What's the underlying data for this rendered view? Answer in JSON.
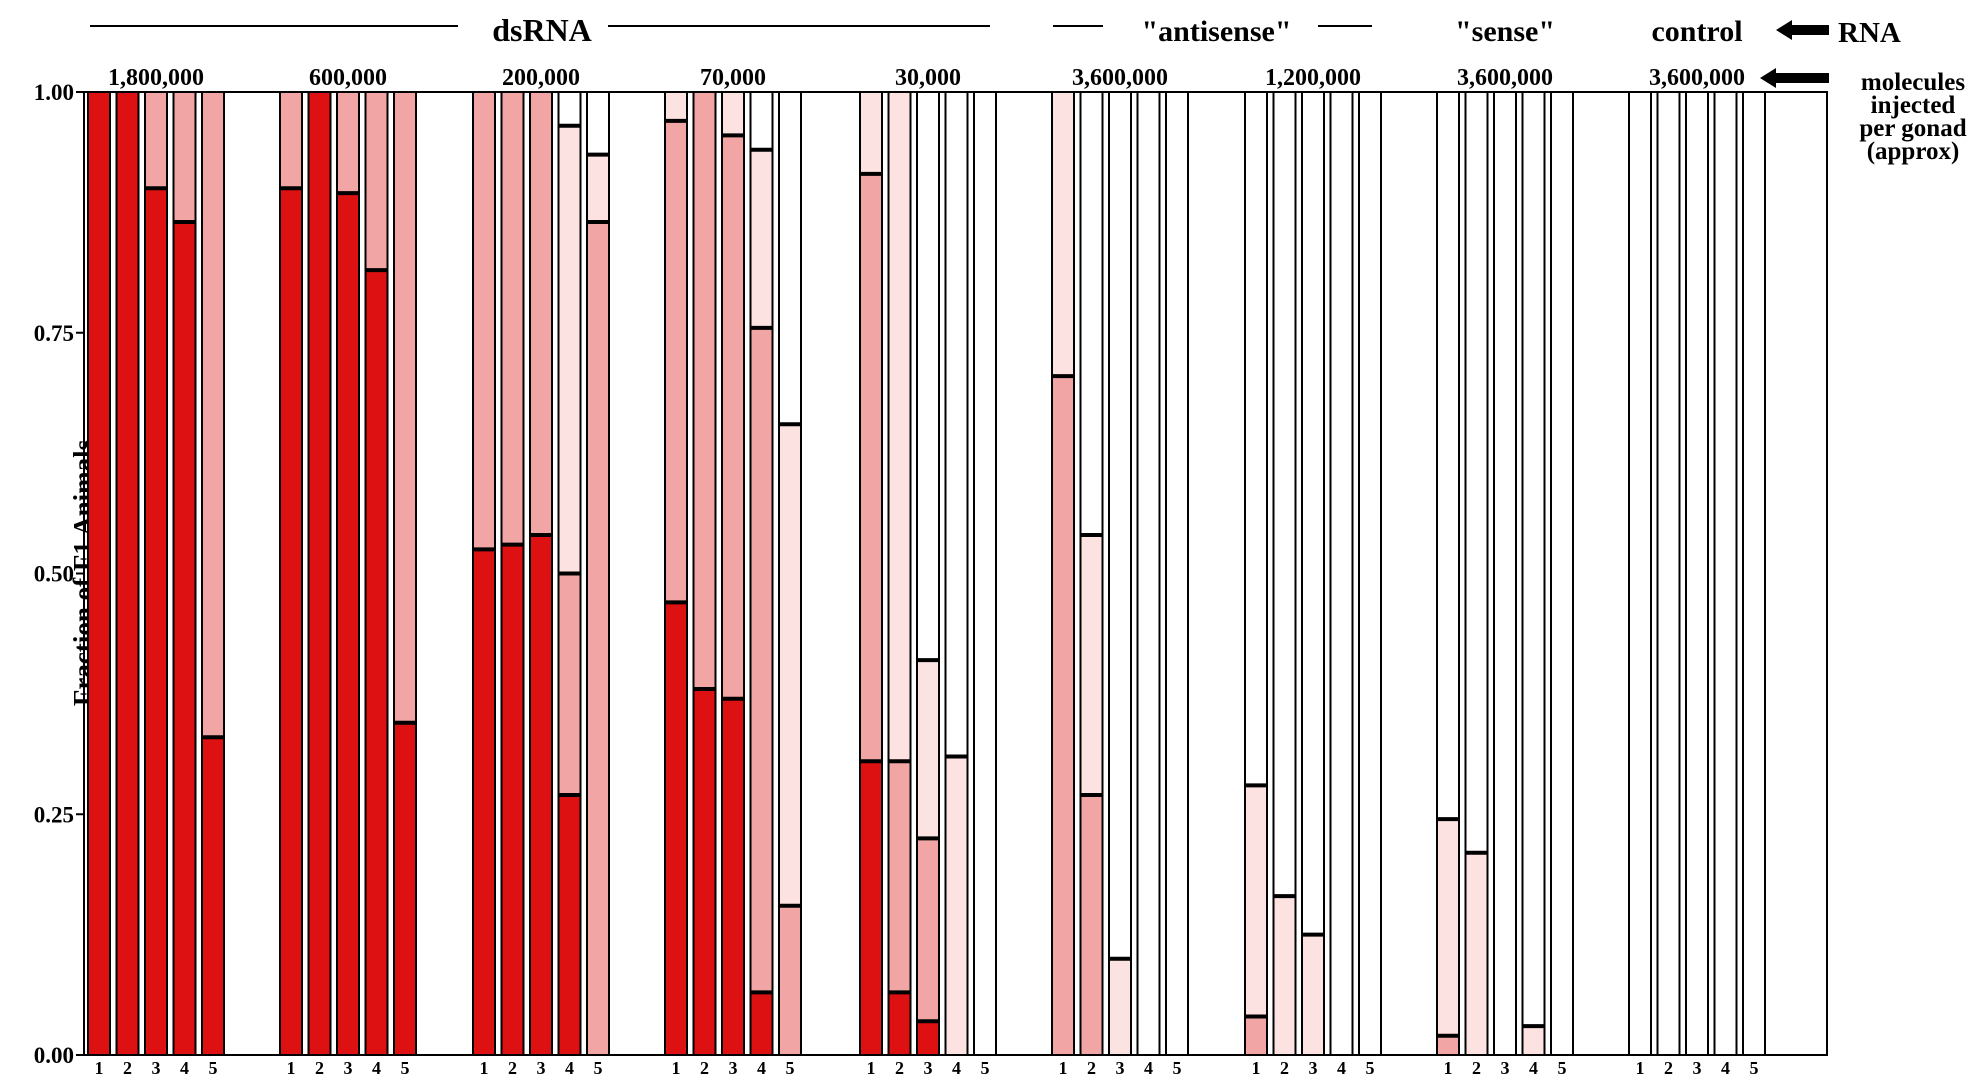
{
  "chart_data": {
    "type": "bar",
    "stacked": true,
    "ylabel": "Fraction of F1 Animals",
    "ylim": [
      0,
      1
    ],
    "yticks": [
      "0.00",
      "0.25",
      "0.50",
      "0.75",
      "1.00"
    ],
    "grid": false,
    "right_labels": {
      "rna": "RNA",
      "molecules": [
        "molecules",
        "injected",
        "per gonad",
        "(approx)"
      ]
    },
    "colors": [
      "#dd1111",
      "#f2a5a5",
      "#fde2e2",
      "#ffffff"
    ],
    "groups": [
      {
        "category": "dsRNA",
        "dose": "1,800,000",
        "bars": [
          {
            "label": "1",
            "values": [
              1.0,
              0,
              0
            ]
          },
          {
            "label": "2",
            "values": [
              1.0,
              0,
              0
            ]
          },
          {
            "label": "3",
            "values": [
              0.9,
              0.1,
              0
            ]
          },
          {
            "label": "4",
            "values": [
              0.865,
              0.135,
              0
            ]
          },
          {
            "label": "5",
            "values": [
              0.33,
              0.67,
              0
            ]
          }
        ]
      },
      {
        "category": "dsRNA",
        "dose": "600,000",
        "bars": [
          {
            "label": "1",
            "values": [
              0.9,
              0.1,
              0
            ]
          },
          {
            "label": "2",
            "values": [
              1.0,
              0,
              0
            ]
          },
          {
            "label": "3",
            "values": [
              0.895,
              0.105,
              0
            ]
          },
          {
            "label": "4",
            "values": [
              0.815,
              0.185,
              0
            ]
          },
          {
            "label": "5",
            "values": [
              0.345,
              0.655,
              0
            ]
          }
        ]
      },
      {
        "category": "dsRNA",
        "dose": "200,000",
        "bars": [
          {
            "label": "1",
            "values": [
              0.525,
              0.475,
              0
            ]
          },
          {
            "label": "2",
            "values": [
              0.53,
              0.47,
              0
            ]
          },
          {
            "label": "3",
            "values": [
              0.54,
              0.46,
              0
            ]
          },
          {
            "label": "4",
            "values": [
              0.27,
              0.23,
              0.465
            ]
          },
          {
            "label": "5",
            "values": [
              0,
              0.865,
              0.07
            ]
          }
        ]
      },
      {
        "category": "dsRNA",
        "dose": "70,000",
        "bars": [
          {
            "label": "1",
            "values": [
              0.47,
              0.5,
              0.03
            ]
          },
          {
            "label": "2",
            "values": [
              0.38,
              0.62,
              0
            ]
          },
          {
            "label": "3",
            "values": [
              0.37,
              0.585,
              0.045
            ]
          },
          {
            "label": "4",
            "values": [
              0.065,
              0.69,
              0.185
            ]
          },
          {
            "label": "5",
            "values": [
              0,
              0.155,
              0.5
            ]
          }
        ]
      },
      {
        "category": "dsRNA",
        "dose": "30,000",
        "bars": [
          {
            "label": "1",
            "values": [
              0.305,
              0.61,
              0.085
            ]
          },
          {
            "label": "2",
            "values": [
              0.065,
              0.24,
              0.695
            ]
          },
          {
            "label": "3",
            "values": [
              0.035,
              0.19,
              0.185
            ]
          },
          {
            "label": "4",
            "values": [
              0,
              0,
              0.31
            ]
          },
          {
            "label": "5",
            "values": [
              0,
              0,
              0
            ]
          }
        ]
      },
      {
        "category": "\"antisense\"",
        "dose": "3,600,000",
        "bars": [
          {
            "label": "1",
            "values": [
              0,
              0.705,
              0.295
            ]
          },
          {
            "label": "2",
            "values": [
              0,
              0.27,
              0.27
            ]
          },
          {
            "label": "3",
            "values": [
              0,
              0,
              0.1
            ]
          },
          {
            "label": "4",
            "values": [
              0,
              0,
              0
            ]
          },
          {
            "label": "5",
            "values": [
              0,
              0,
              0
            ]
          }
        ]
      },
      {
        "category": "\"antisense\"",
        "dose": "1,200,000",
        "bars": [
          {
            "label": "1",
            "values": [
              0,
              0.04,
              0.24
            ]
          },
          {
            "label": "2",
            "values": [
              0,
              0,
              0.165
            ]
          },
          {
            "label": "3",
            "values": [
              0,
              0,
              0.125
            ]
          },
          {
            "label": "4",
            "values": [
              0,
              0,
              0
            ]
          },
          {
            "label": "5",
            "values": [
              0,
              0,
              0
            ]
          }
        ]
      },
      {
        "category": "\"sense\"",
        "dose": "3,600,000",
        "bars": [
          {
            "label": "1",
            "values": [
              0,
              0.02,
              0.225
            ]
          },
          {
            "label": "2",
            "values": [
              0,
              0,
              0.21
            ]
          },
          {
            "label": "3",
            "values": [
              0,
              0,
              0
            ]
          },
          {
            "label": "4",
            "values": [
              0,
              0,
              0.03
            ]
          },
          {
            "label": "5",
            "values": [
              0,
              0,
              0
            ]
          }
        ]
      },
      {
        "category": "control",
        "dose": "3,600,000",
        "bars": [
          {
            "label": "1",
            "values": [
              0,
              0,
              0
            ]
          },
          {
            "label": "2",
            "values": [
              0,
              0,
              0
            ]
          },
          {
            "label": "3",
            "values": [
              0,
              0,
              0
            ]
          },
          {
            "label": "4",
            "values": [
              0,
              0,
              0
            ]
          },
          {
            "label": "5",
            "values": [
              0,
              0,
              0
            ]
          }
        ]
      }
    ],
    "categories": [
      {
        "name": "dsRNA",
        "groups": [
          0,
          1,
          2,
          3,
          4
        ]
      },
      {
        "name": "\"antisense\"",
        "groups": [
          5,
          6
        ]
      },
      {
        "name": "\"sense\"",
        "groups": [
          7
        ]
      },
      {
        "name": "control",
        "groups": [
          8
        ]
      }
    ]
  }
}
